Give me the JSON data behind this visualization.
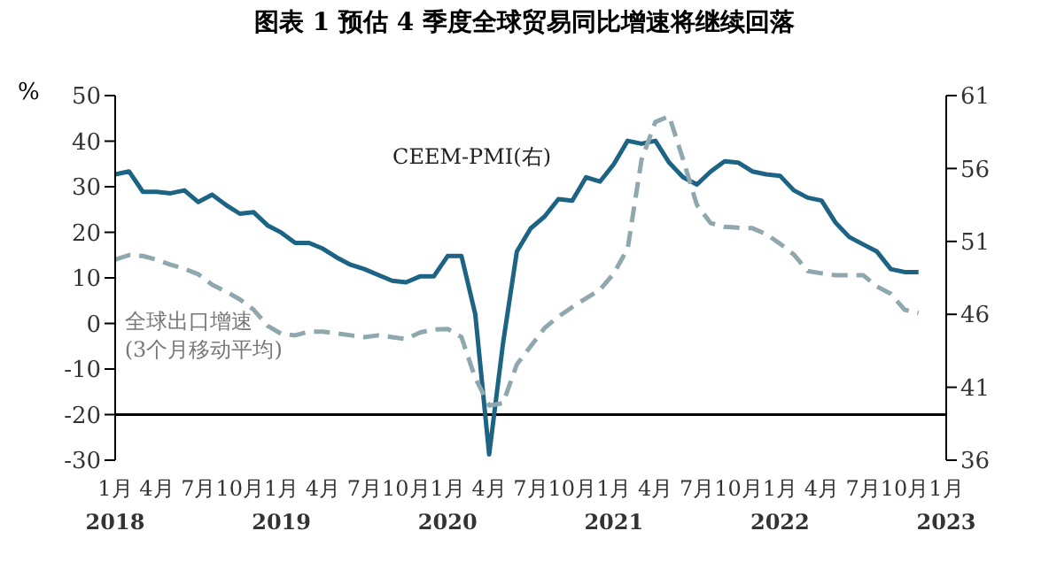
{
  "chart_data": {
    "type": "line",
    "title": "图表 1 预估 4 季度全球贸易同比增速将继续回落",
    "ylabel": "%",
    "categories": [
      "1月\n2018",
      null,
      null,
      "4月",
      null,
      null,
      "7月",
      null,
      null,
      "10月",
      null,
      null,
      "1月\n2019",
      null,
      null,
      "4月",
      null,
      null,
      "7月",
      null,
      null,
      "10月",
      null,
      null,
      "1月\n2020",
      null,
      null,
      "4月",
      null,
      null,
      "7月",
      null,
      null,
      "10月",
      null,
      null,
      "1月\n2021",
      null,
      null,
      "4月",
      null,
      null,
      "7月",
      null,
      null,
      "10月",
      null,
      null,
      "1月\n2022",
      null,
      null,
      "4月",
      null,
      null,
      "7月",
      null,
      null,
      "10月",
      null,
      null,
      "1月\n2023"
    ],
    "series": [
      {
        "name": "CEEM-PMI(右)",
        "color": "#1d6484",
        "axis": "y2",
        "line_style": "solid",
        "values": [
          55.6,
          55.8,
          54.4,
          54.4,
          54.3,
          54.5,
          53.7,
          54.2,
          53.5,
          52.9,
          53.0,
          52.1,
          51.6,
          50.9,
          50.9,
          50.5,
          49.9,
          49.4,
          49.1,
          48.7,
          48.3,
          48.2,
          48.6,
          48.6,
          50.0,
          50.0,
          46.0,
          36.4,
          44.0,
          50.3,
          51.9,
          52.7,
          53.9,
          53.8,
          55.4,
          55.1,
          56.3,
          57.9,
          57.7,
          57.9,
          56.4,
          55.4,
          54.9,
          55.8,
          56.5,
          56.4,
          55.8,
          55.6,
          55.5,
          54.5,
          54.0,
          53.8,
          52.3,
          51.3,
          50.8,
          50.3,
          49.1,
          48.9,
          48.9,
          null,
          null
        ]
      },
      {
        "name": "全球出口增速\n(3个月移动平均)",
        "color": "#8fa7ae",
        "line_style": "dashed",
        "values": [
          14,
          15,
          14.8,
          14,
          12.9,
          12,
          10.8,
          8.5,
          7,
          5.3,
          3,
          -0.5,
          -2.3,
          -2.6,
          -1.8,
          -1.8,
          -2.2,
          -2.6,
          -3,
          -2.6,
          -3,
          -3.4,
          -2,
          -1.3,
          -1.2,
          -3,
          -12,
          -18,
          -17.5,
          -9,
          -5,
          -1,
          1.5,
          3.6,
          5.5,
          7.4,
          11,
          16.4,
          35.9,
          44.2,
          45.5,
          36,
          26,
          22,
          21.2,
          21,
          20.9,
          19.6,
          17.5,
          15.1,
          11.5,
          11,
          10.6,
          10.6,
          10.6,
          8.1,
          6.5,
          3,
          2.3,
          null,
          null
        ]
      }
    ],
    "ylim": [
      -30,
      50
    ],
    "yticks": [
      -30,
      -20,
      -10,
      0,
      10,
      20,
      30,
      40,
      50
    ],
    "y2lim": [
      36,
      61
    ],
    "y2ticks": [
      36,
      41,
      46,
      51,
      56,
      61
    ],
    "ref_lines": [
      {
        "axis": "y",
        "value": -20,
        "color": "#000000"
      }
    ],
    "legend": false
  }
}
